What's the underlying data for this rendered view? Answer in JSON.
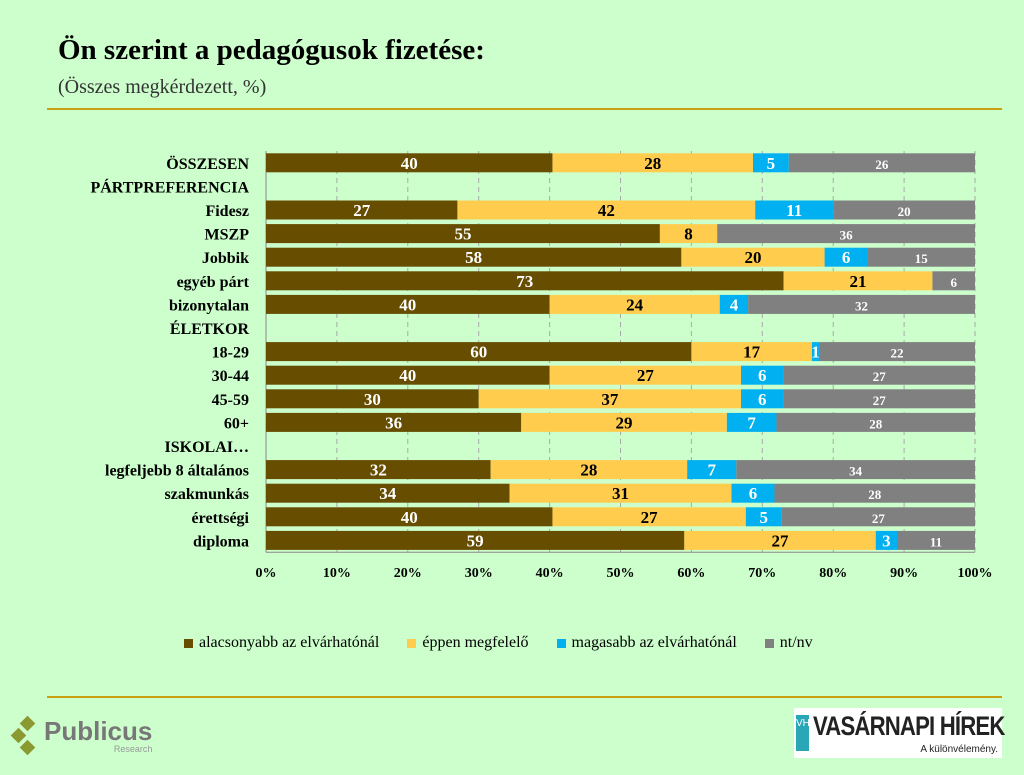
{
  "chart_data": {
    "type": "bar",
    "orientation": "horizontal",
    "stacked": true,
    "title": "Ön szerint a pedagógusok fizetése:",
    "subtitle": "(Összes megkérdezett, %)",
    "categories": [
      "ÖSSZESEN",
      "PÁRTPREFERENCIA",
      "Fidesz",
      "MSZP",
      "Jobbik",
      "egyéb párt",
      "bizonytalan",
      "ÉLETKOR",
      "18-29",
      "30-44",
      "45-59",
      "60+",
      "ISKOLAI…",
      "legfeljebb 8 általános",
      "szakmunkás",
      "érettségi",
      "diploma"
    ],
    "category_is_header": [
      false,
      true,
      false,
      false,
      false,
      false,
      false,
      true,
      false,
      false,
      false,
      false,
      true,
      false,
      false,
      false,
      false
    ],
    "series": [
      {
        "name": "alacsonyabb az elvárhatónál",
        "color": "#664d00",
        "label_color": "#ffffff",
        "values": [
          40,
          null,
          27,
          55,
          58,
          73,
          40,
          null,
          60,
          40,
          30,
          36,
          null,
          32,
          34,
          40,
          59
        ]
      },
      {
        "name": "éppen megfelelő",
        "color": "#ffcc4d",
        "label_color": "#000000",
        "values": [
          28,
          null,
          42,
          8,
          20,
          21,
          24,
          null,
          17,
          27,
          37,
          29,
          null,
          28,
          31,
          27,
          27
        ]
      },
      {
        "name": "magasabb az elvárhatónál",
        "color": "#00b0f0",
        "label_color": "#ffffff",
        "values": [
          5,
          null,
          11,
          null,
          6,
          null,
          4,
          null,
          1,
          6,
          6,
          7,
          null,
          7,
          6,
          5,
          3
        ]
      },
      {
        "name": "nt/nv",
        "color": "#808080",
        "label_color": "#ffffff",
        "values": [
          26,
          null,
          20,
          36,
          15,
          6,
          32,
          null,
          22,
          27,
          27,
          28,
          null,
          34,
          28,
          27,
          11
        ]
      }
    ],
    "xlim": [
      0,
      100
    ],
    "xticks": [
      "0%",
      "10%",
      "20%",
      "30%",
      "40%",
      "50%",
      "60%",
      "70%",
      "80%",
      "90%",
      "100%"
    ],
    "grid": "vertical dashed",
    "legend_position": "bottom"
  },
  "logos": {
    "left": {
      "name": "Publicus",
      "sub": "Research"
    },
    "right": {
      "box": "VH",
      "name": "VASÁRNAPI HÍREK",
      "tagline": "A különvélemény."
    }
  }
}
